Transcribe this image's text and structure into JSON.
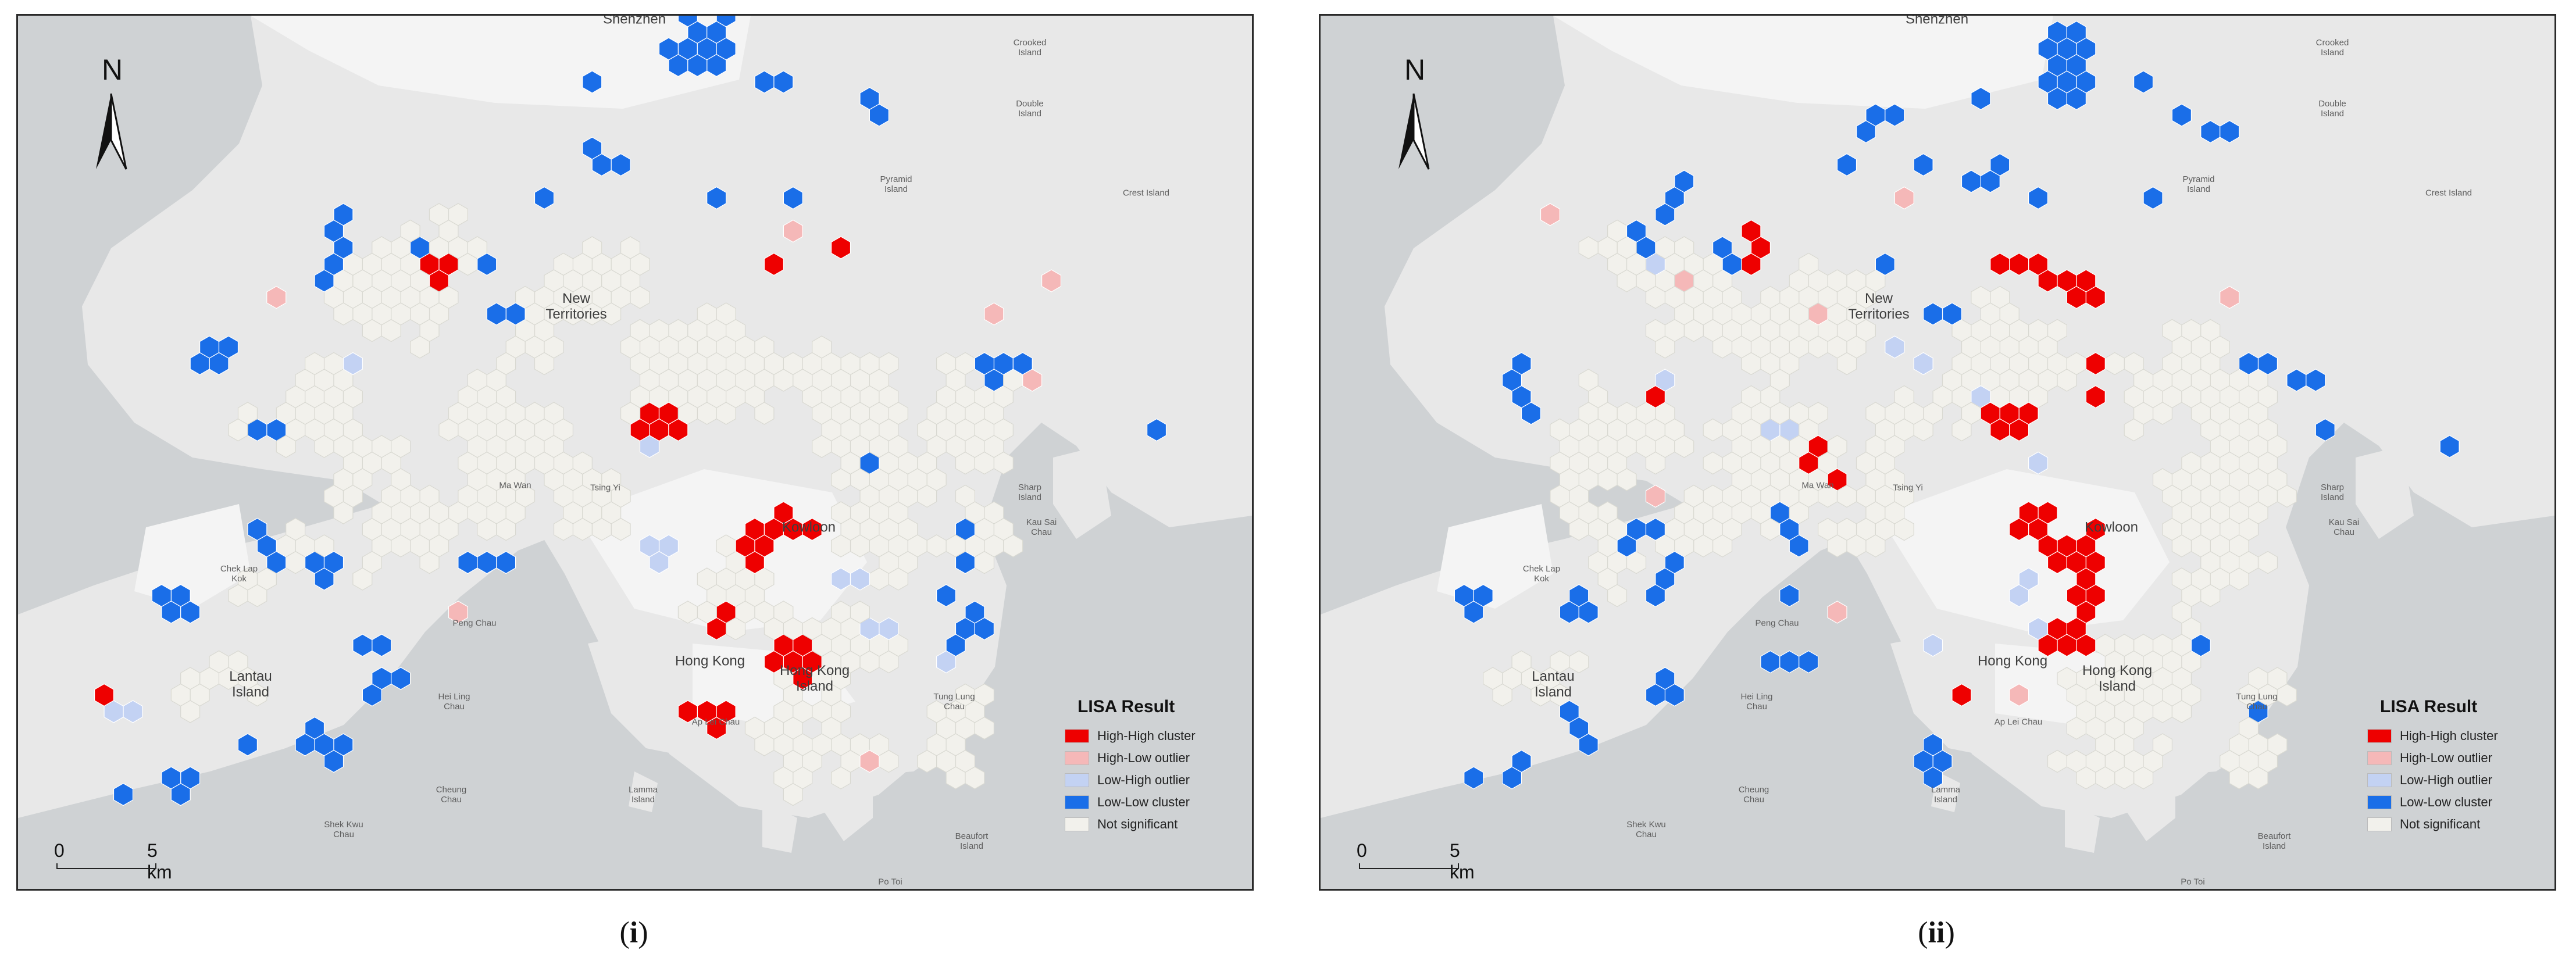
{
  "colors": {
    "high_high": "#ee0000",
    "high_low": "#f5b8b8",
    "low_high": "#c3d2f3",
    "low_low": "#1a6ee8",
    "not_significant": "#f2f1ec",
    "sea": "#cfd2d4",
    "land": "#e8e8e8",
    "urban": "#f4f4f4"
  },
  "legend": {
    "title": "LISA Result",
    "items": [
      {
        "key": "high_high",
        "label": "High-High cluster"
      },
      {
        "key": "high_low",
        "label": "High-Low outlier"
      },
      {
        "key": "low_high",
        "label": "Low-High outlier"
      },
      {
        "key": "low_low",
        "label": "Low-Low cluster"
      },
      {
        "key": "not_significant",
        "label": "Not significant"
      }
    ]
  },
  "north_arrow": {
    "letter": "N",
    "icon": "north-arrow-icon"
  },
  "scale": {
    "start": "0",
    "end": "5 km"
  },
  "place_labels": {
    "shenzhen": "Shenzhen",
    "new_territories": "New\nTerritories",
    "kowloon": "Kowloon",
    "hong_kong": "Hong Kong",
    "hong_kong_island": "Hong Kong\nIsland",
    "lantau": "Lantau\nIsland",
    "chek_lap_kok": "Chek Lap\nKok",
    "ma_wan": "Ma Wan",
    "tsing_yi": "Tsing Yi",
    "peng_chau": "Peng Chau",
    "hei_ling_chau": "Hei Ling\nChau",
    "ap_lei_chau": "Ap Lei Chau",
    "lamma": "Lamma\nIsland",
    "cheung_chau": "Cheung\nChau",
    "shek_kwu_chau": "Shek Kwu\nChau",
    "tung_lung_chau": "Tung Lung\nChau",
    "sharp_island": "Sharp\nIsland",
    "kau_sai_chau": "Kau Sai\nChau",
    "crooked_island": "Crooked\nIsland",
    "double_island": "Double\nIsland",
    "crest_island": "Crest Island",
    "pyramid_island": "Pyramid\nIsland",
    "po_toi": "Po Toi",
    "beaufort": "Beaufort\nIsland"
  },
  "panels": [
    {
      "id": "i",
      "caption_open": "(",
      "caption_num": "i",
      "caption_close": ")",
      "clusters": {
        "high_high": [
          [
            750,
            440,
            3
          ],
          [
            1080,
            720,
            5
          ],
          [
            1260,
            880,
            8
          ],
          [
            1320,
            1080,
            6
          ],
          [
            1200,
            1200,
            4
          ],
          [
            1300,
            420,
            1
          ],
          [
            1400,
            400,
            1
          ],
          [
            1190,
            1050,
            2
          ],
          [
            140,
            1180,
            1
          ]
        ],
        "high_low": [
          [
            460,
            480,
            1
          ],
          [
            1320,
            360,
            1
          ],
          [
            1680,
            500,
            1
          ],
          [
            1780,
            460,
            1
          ],
          [
            1750,
            640,
            1
          ],
          [
            770,
            1040,
            1
          ],
          [
            1470,
            1280,
            1
          ]
        ],
        "low_high": [
          [
            560,
            610,
            1
          ],
          [
            200,
            1200,
            2
          ],
          [
            1120,
            900,
            3
          ],
          [
            1400,
            960,
            2
          ],
          [
            1480,
            1060,
            2
          ],
          [
            1100,
            750,
            1
          ],
          [
            1600,
            1100,
            1
          ]
        ],
        "low_low": [
          [
            1150,
            90,
            12
          ],
          [
            990,
            110,
            1
          ],
          [
            1300,
            120,
            2
          ],
          [
            1450,
            130,
            1
          ],
          [
            1480,
            180,
            1
          ],
          [
            990,
            260,
            3
          ],
          [
            900,
            300,
            1
          ],
          [
            1200,
            320,
            1
          ],
          [
            1320,
            300,
            1
          ],
          [
            560,
            340,
            2
          ],
          [
            540,
            420,
            3
          ],
          [
            700,
            420,
            2
          ],
          [
            820,
            430,
            1
          ],
          [
            860,
            520,
            2
          ],
          [
            340,
            600,
            4
          ],
          [
            400,
            700,
            2
          ],
          [
            1680,
            610,
            4
          ],
          [
            1950,
            720,
            1
          ],
          [
            1470,
            760,
            1
          ],
          [
            1620,
            880,
            1
          ],
          [
            1620,
            940,
            1
          ],
          [
            1580,
            1000,
            1
          ],
          [
            1640,
            1060,
            3
          ],
          [
            450,
            940,
            3
          ],
          [
            520,
            980,
            3
          ],
          [
            280,
            1000,
            4
          ],
          [
            640,
            1080,
            2
          ],
          [
            780,
            940,
            3
          ],
          [
            620,
            1140,
            3
          ],
          [
            500,
            1220,
            3
          ],
          [
            380,
            1260,
            1
          ],
          [
            550,
            1260,
            2
          ],
          [
            300,
            1300,
            3
          ],
          [
            170,
            1330,
            1
          ],
          [
            1650,
            1060,
            1
          ]
        ],
        "not_significant": [
          [
            620,
            460,
            40
          ],
          [
            900,
            520,
            30
          ],
          [
            1200,
            560,
            30
          ],
          [
            520,
            680,
            35
          ],
          [
            820,
            700,
            40
          ],
          [
            1150,
            640,
            35
          ],
          [
            1450,
            650,
            30
          ],
          [
            1620,
            700,
            25
          ],
          [
            1520,
            800,
            25
          ],
          [
            1500,
            900,
            25
          ],
          [
            1250,
            1000,
            20
          ],
          [
            1400,
            1100,
            25
          ],
          [
            1350,
            1250,
            25
          ],
          [
            950,
            800,
            20
          ],
          [
            700,
            860,
            20
          ],
          [
            500,
            900,
            12
          ],
          [
            340,
            1100,
            10
          ],
          [
            1600,
            1200,
            15
          ],
          [
            1650,
            920,
            12
          ]
        ]
      }
    },
    {
      "id": "ii",
      "caption_open": "(",
      "caption_num": "ii",
      "caption_close": ")",
      "clusters": {
        "high_high": [
          [
            750,
            440,
            3
          ],
          [
            1160,
            720,
            5
          ],
          [
            1240,
            900,
            10
          ],
          [
            1320,
            1030,
            5
          ],
          [
            1300,
            1080,
            5
          ],
          [
            1230,
            440,
            5
          ],
          [
            1300,
            480,
            3
          ],
          [
            1320,
            600,
            1
          ],
          [
            1330,
            660,
            1
          ],
          [
            580,
            650,
            1
          ],
          [
            860,
            730,
            2
          ],
          [
            890,
            790,
            1
          ],
          [
            1100,
            1180,
            1
          ]
        ],
        "high_low": [
          [
            390,
            330,
            1
          ],
          [
            610,
            450,
            1
          ],
          [
            1000,
            320,
            1
          ],
          [
            1550,
            480,
            1
          ],
          [
            2200,
            460,
            1
          ],
          [
            860,
            520,
            1
          ],
          [
            590,
            820,
            1
          ],
          [
            1190,
            1180,
            1
          ],
          [
            900,
            1040,
            1
          ]
        ],
        "low_high": [
          [
            580,
            440,
            1
          ],
          [
            600,
            640,
            1
          ],
          [
            820,
            720,
            2
          ],
          [
            1150,
            650,
            1
          ],
          [
            1000,
            560,
            1
          ],
          [
            1050,
            600,
            1
          ],
          [
            1250,
            760,
            1
          ],
          [
            1280,
            900,
            2
          ],
          [
            1040,
            1080,
            1
          ],
          [
            1200,
            1010,
            2
          ],
          [
            1240,
            1050,
            1
          ]
        ],
        "low_low": [
          [
            1280,
            100,
            12
          ],
          [
            1120,
            130,
            1
          ],
          [
            1410,
            120,
            1
          ],
          [
            1470,
            160,
            1
          ],
          [
            1520,
            210,
            2
          ],
          [
            960,
            160,
            3
          ],
          [
            920,
            250,
            1
          ],
          [
            1050,
            260,
            1
          ],
          [
            1170,
            260,
            3
          ],
          [
            1240,
            300,
            1
          ],
          [
            1430,
            320,
            1
          ],
          [
            600,
            300,
            3
          ],
          [
            560,
            420,
            3
          ],
          [
            720,
            430,
            2
          ],
          [
            960,
            440,
            1
          ],
          [
            1080,
            500,
            2
          ],
          [
            1600,
            590,
            2
          ],
          [
            1690,
            620,
            2
          ],
          [
            1720,
            720,
            1
          ],
          [
            1950,
            730,
            1
          ],
          [
            330,
            600,
            3
          ],
          [
            360,
            680,
            1
          ],
          [
            540,
            900,
            3
          ],
          [
            600,
            960,
            3
          ],
          [
            830,
            910,
            3
          ],
          [
            800,
            1000,
            1
          ],
          [
            280,
            1000,
            3
          ],
          [
            430,
            1040,
            3
          ],
          [
            780,
            1120,
            3
          ],
          [
            600,
            1140,
            3
          ],
          [
            460,
            1220,
            3
          ],
          [
            330,
            1270,
            2
          ],
          [
            250,
            1300,
            1
          ],
          [
            1060,
            1320,
            4
          ],
          [
            1530,
            1080,
            1
          ],
          [
            1610,
            1200,
            1
          ]
        ],
        "not_significant": [
          [
            620,
            460,
            40
          ],
          [
            900,
            520,
            35
          ],
          [
            1200,
            560,
            35
          ],
          [
            520,
            680,
            35
          ],
          [
            820,
            700,
            40
          ],
          [
            1150,
            640,
            35
          ],
          [
            1450,
            650,
            30
          ],
          [
            1600,
            700,
            25
          ],
          [
            1520,
            820,
            25
          ],
          [
            1500,
            900,
            25
          ],
          [
            1400,
            1100,
            25
          ],
          [
            1350,
            1250,
            25
          ],
          [
            950,
            800,
            20
          ],
          [
            700,
            860,
            20
          ],
          [
            500,
            900,
            12
          ],
          [
            340,
            1100,
            10
          ],
          [
            1600,
            1200,
            15
          ]
        ]
      }
    }
  ]
}
